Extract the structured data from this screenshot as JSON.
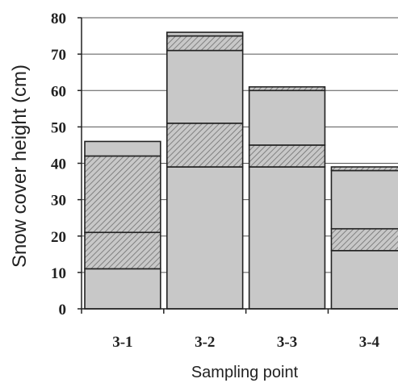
{
  "chart_data": {
    "type": "bar",
    "stacked": true,
    "title": "",
    "xlabel": "Sampling point",
    "ylabel": "Snow cover height (cm)",
    "ylim": [
      0,
      80
    ],
    "yticks": [
      "0",
      "10",
      "20",
      "30",
      "40",
      "50",
      "60",
      "70",
      "80"
    ],
    "grid": "horizontal",
    "legend": "none",
    "categories": [
      "3-1",
      "3-2",
      "3-3",
      "3-4"
    ],
    "bars": [
      {
        "category": "3-1",
        "layers": [
          {
            "from": 0,
            "to": 11,
            "fill": "plain"
          },
          {
            "from": 11,
            "to": 21,
            "fill": "hatched"
          },
          {
            "from": 21,
            "to": 42,
            "fill": "hatched"
          },
          {
            "from": 42,
            "to": 46,
            "fill": "plain"
          }
        ]
      },
      {
        "category": "3-2",
        "layers": [
          {
            "from": 0,
            "to": 39,
            "fill": "plain"
          },
          {
            "from": 39,
            "to": 51,
            "fill": "hatched"
          },
          {
            "from": 51,
            "to": 71,
            "fill": "plain"
          },
          {
            "from": 71,
            "to": 75,
            "fill": "hatched"
          },
          {
            "from": 75,
            "to": 76,
            "fill": "plain"
          }
        ]
      },
      {
        "category": "3-3",
        "layers": [
          {
            "from": 0,
            "to": 39,
            "fill": "plain"
          },
          {
            "from": 39,
            "to": 45,
            "fill": "hatched"
          },
          {
            "from": 45,
            "to": 60,
            "fill": "plain"
          },
          {
            "from": 60,
            "to": 61,
            "fill": "hatched"
          }
        ]
      },
      {
        "category": "3-4",
        "layers": [
          {
            "from": 0,
            "to": 16,
            "fill": "plain"
          },
          {
            "from": 16,
            "to": 22,
            "fill": "hatched"
          },
          {
            "from": 22,
            "to": 38,
            "fill": "plain"
          },
          {
            "from": 38,
            "to": 39,
            "fill": "hatched"
          }
        ]
      }
    ],
    "colors": {
      "bar_fill": "#c8c8c8",
      "hatch_line": "#6f6f6f",
      "outline": "#222222",
      "grid": "#555555"
    }
  }
}
